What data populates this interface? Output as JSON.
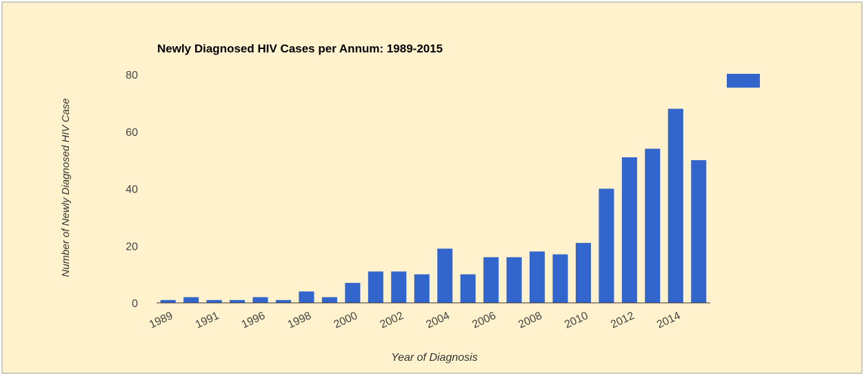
{
  "chart_data": {
    "type": "bar",
    "title": "Newly Diagnosed HIV Cases per Annum: 1989-2015",
    "x_label": "Year of Diagnosis",
    "y_label": "Number of Newly Diagnosed HIV Case",
    "categories": [
      "1989",
      null,
      "1991",
      null,
      "1996",
      null,
      "1998",
      null,
      "2000",
      null,
      "2002",
      null,
      "2004",
      null,
      "2006",
      null,
      "2008",
      null,
      "2010",
      null,
      "2012",
      null,
      "2014",
      null
    ],
    "values": [
      1,
      2,
      1,
      1,
      2,
      1,
      4,
      2,
      7,
      11,
      11,
      10,
      19,
      10,
      16,
      16,
      18,
      17,
      21,
      40,
      51,
      54,
      68,
      50
    ],
    "color": "#3366cc",
    "ylim": [
      0,
      80
    ],
    "yticks": [
      0,
      20,
      40,
      60,
      80
    ],
    "grid": false
  }
}
